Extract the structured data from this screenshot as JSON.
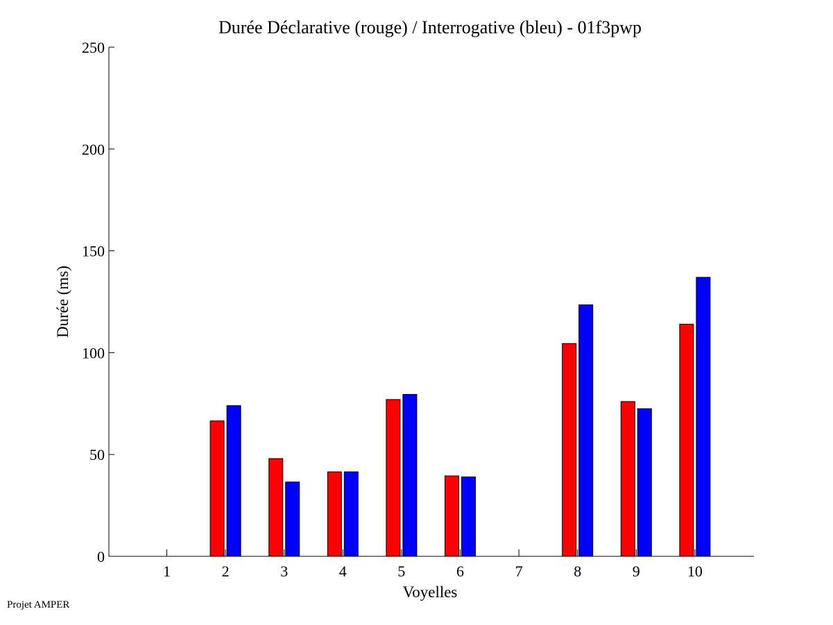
{
  "chart_data": {
    "type": "bar",
    "title": "Durée Déclarative (rouge) / Interrogative (bleu) - 01f3pwp",
    "xlabel": "Voyelles",
    "ylabel": "Durée (ms)",
    "categories": [
      "1",
      "2",
      "3",
      "4",
      "5",
      "6",
      "7",
      "8",
      "9",
      "10"
    ],
    "ylim": [
      0,
      250
    ],
    "yticks": [
      "0",
      "50",
      "100",
      "150",
      "200",
      "250"
    ],
    "series": [
      {
        "name": "Déclarative",
        "color": "#ff0000",
        "values": [
          0,
          66.5,
          48,
          41.5,
          77,
          39.5,
          0,
          104.5,
          76,
          114
        ]
      },
      {
        "name": "Interrogative",
        "color": "#0000ff",
        "values": [
          0,
          74,
          36.5,
          41.5,
          79.5,
          39,
          0,
          123.5,
          72.5,
          137
        ]
      }
    ],
    "grid": false,
    "legend": "none"
  },
  "footer": {
    "note": "Projet AMPER"
  }
}
